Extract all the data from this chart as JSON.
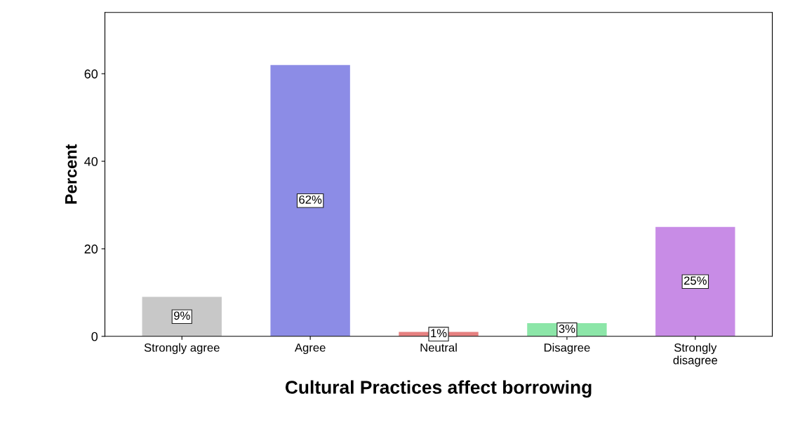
{
  "chart_data": {
    "type": "bar",
    "xlabel": "Cultural Practices affect borrowing",
    "ylabel": "Percent",
    "categories": [
      "Strongly agree",
      "Agree",
      "Neutral",
      "Disagree",
      "Strongly\ndisagree"
    ],
    "values": [
      9,
      62,
      1,
      3,
      25
    ],
    "colors": [
      "#c8c8c8",
      "#8c8ce6",
      "#e68080",
      "#8ce6a8",
      "#c88ce6"
    ],
    "value_labels": [
      "9%",
      "62%",
      "1%",
      "3%",
      "25%"
    ],
    "ylim": [
      0,
      74
    ],
    "yticks": [
      0,
      20,
      40,
      60
    ],
    "grid": false
  }
}
